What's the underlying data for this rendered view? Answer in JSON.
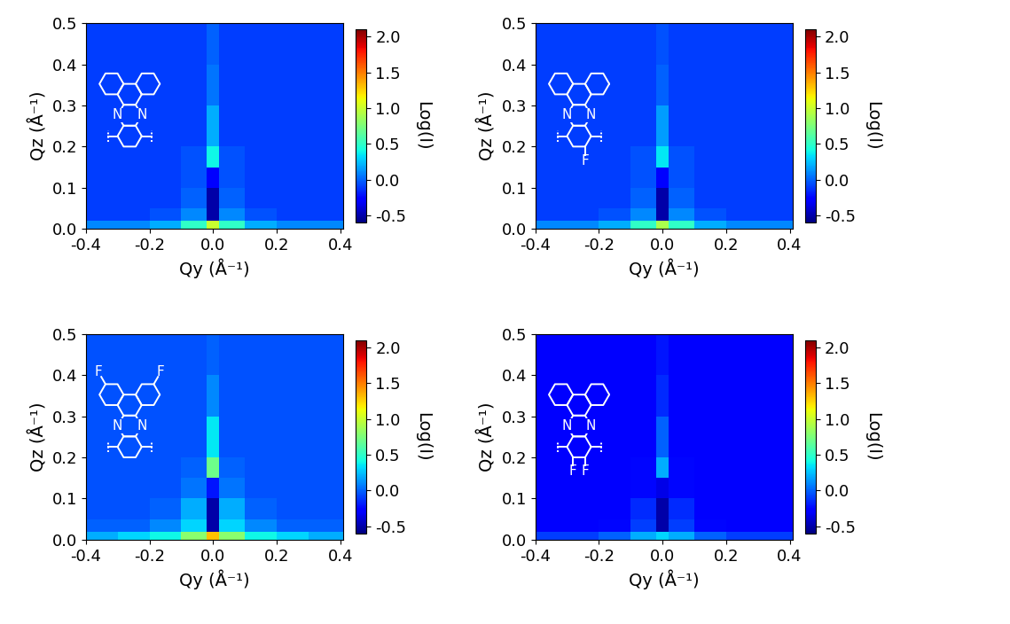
{
  "chart_data": [
    {
      "type": "heatmap",
      "x_label": "Qy (Å⁻¹)",
      "y_label": "Qz (Å⁻¹)",
      "xlim": [
        -0.4,
        0.41
      ],
      "ylim": [
        0,
        0.5
      ],
      "xticks": [
        -0.4,
        -0.2,
        {
          "value": 0.0,
          "label": "0.0"
        },
        0.2,
        0.4
      ],
      "yticks": [
        {
          "value": 0.0,
          "label": "0.0"
        },
        0.1,
        0.2,
        0.3,
        0.4,
        0.5
      ],
      "qy_edges": [
        -0.4,
        -0.3,
        -0.2,
        -0.1,
        -0.02,
        0.02,
        0.1,
        0.2,
        0.3,
        0.41
      ],
      "qz_edges": [
        0,
        0.02,
        0.05,
        0.1,
        0.15,
        0.2,
        0.3,
        0.4,
        0.5
      ],
      "cells": [
        [
          0.1,
          0.1,
          0.2,
          0.5,
          1.0,
          0.5,
          0.2,
          0.1,
          0.1
        ],
        [
          -0.1,
          -0.1,
          -0.05,
          0.1,
          -0.5,
          0.1,
          -0.05,
          -0.1,
          -0.1
        ],
        [
          -0.1,
          -0.1,
          -0.1,
          0.0,
          -0.5,
          0.0,
          -0.1,
          -0.1,
          -0.1
        ],
        [
          -0.1,
          -0.1,
          -0.1,
          -0.05,
          -0.3,
          -0.05,
          -0.1,
          -0.1,
          -0.1
        ],
        [
          -0.1,
          -0.1,
          -0.1,
          -0.05,
          0.4,
          -0.05,
          -0.1,
          -0.1,
          -0.1
        ],
        [
          -0.1,
          -0.1,
          -0.1,
          -0.1,
          0.2,
          -0.1,
          -0.1,
          -0.1,
          -0.1
        ],
        [
          -0.1,
          -0.1,
          -0.1,
          -0.1,
          0.05,
          -0.1,
          -0.1,
          -0.1,
          -0.1
        ],
        [
          -0.1,
          -0.1,
          -0.1,
          -0.1,
          0.0,
          -0.1,
          -0.1,
          -0.1,
          -0.1
        ]
      ],
      "colorbar": {
        "label": "Log(I)",
        "range": [
          -0.6,
          2.1
        ],
        "ticks": [
          -0.5,
          {
            "value": 0.0,
            "label": "0.0"
          },
          0.5,
          {
            "value": 1.0,
            "label": "1.0"
          },
          1.5,
          {
            "value": 2.0,
            "label": "2.0"
          }
        ]
      },
      "structure_labels": [
        "N",
        "N"
      ]
    },
    {
      "type": "heatmap",
      "x_label": "Qy (Å⁻¹)",
      "y_label": "Qz (Å⁻¹)",
      "xlim": [
        -0.4,
        0.41
      ],
      "ylim": [
        0,
        0.5
      ],
      "xticks": [
        -0.4,
        -0.2,
        {
          "value": 0.0,
          "label": "0.0"
        },
        0.2,
        0.4
      ],
      "yticks": [
        {
          "value": 0.0,
          "label": "0.0"
        },
        0.1,
        0.2,
        0.3,
        0.4,
        0.5
      ],
      "qy_edges": [
        -0.4,
        -0.3,
        -0.2,
        -0.1,
        -0.02,
        0.02,
        0.1,
        0.2,
        0.3,
        0.41
      ],
      "qz_edges": [
        0,
        0.02,
        0.05,
        0.1,
        0.15,
        0.2,
        0.3,
        0.4,
        0.5
      ],
      "cells": [
        [
          0.1,
          0.1,
          0.2,
          0.5,
          0.9,
          0.5,
          0.2,
          0.1,
          0.1
        ],
        [
          -0.1,
          -0.1,
          -0.05,
          0.1,
          -0.5,
          0.1,
          -0.05,
          -0.1,
          -0.1
        ],
        [
          -0.1,
          -0.1,
          -0.1,
          0.0,
          -0.5,
          0.0,
          -0.1,
          -0.1,
          -0.1
        ],
        [
          -0.1,
          -0.1,
          -0.1,
          -0.05,
          -0.3,
          -0.05,
          -0.1,
          -0.1,
          -0.1
        ],
        [
          -0.1,
          -0.1,
          -0.1,
          -0.05,
          0.35,
          -0.05,
          -0.1,
          -0.1,
          -0.1
        ],
        [
          -0.1,
          -0.1,
          -0.1,
          -0.1,
          0.15,
          -0.1,
          -0.1,
          -0.1,
          -0.1
        ],
        [
          -0.1,
          -0.1,
          -0.1,
          -0.1,
          0.0,
          -0.1,
          -0.1,
          -0.1,
          -0.1
        ],
        [
          -0.1,
          -0.1,
          -0.1,
          -0.1,
          -0.05,
          -0.1,
          -0.1,
          -0.1,
          -0.1
        ]
      ],
      "colorbar": {
        "label": "Log(I)",
        "range": [
          -0.6,
          2.1
        ],
        "ticks": [
          -0.5,
          {
            "value": 0.0,
            "label": "0.0"
          },
          0.5,
          {
            "value": 1.0,
            "label": "1.0"
          },
          1.5,
          {
            "value": 2.0,
            "label": "2.0"
          }
        ]
      },
      "structure_labels": [
        "N",
        "N",
        "F"
      ]
    },
    {
      "type": "heatmap",
      "x_label": "Qy (Å⁻¹)",
      "y_label": "Qz (Å⁻¹)",
      "xlim": [
        -0.4,
        0.41
      ],
      "ylim": [
        0,
        0.5
      ],
      "xticks": [
        -0.4,
        -0.2,
        {
          "value": 0.0,
          "label": "0.0"
        },
        0.2,
        0.4
      ],
      "yticks": [
        {
          "value": 0.0,
          "label": "0.0"
        },
        0.1,
        0.2,
        0.3,
        0.4,
        0.5
      ],
      "qy_edges": [
        -0.4,
        -0.3,
        -0.2,
        -0.1,
        -0.02,
        0.02,
        0.1,
        0.2,
        0.3,
        0.41
      ],
      "qz_edges": [
        0,
        0.02,
        0.05,
        0.1,
        0.15,
        0.2,
        0.3,
        0.4,
        0.5
      ],
      "cells": [
        [
          0.2,
          0.3,
          0.4,
          0.8,
          1.3,
          0.8,
          0.4,
          0.3,
          0.2
        ],
        [
          0.0,
          0.0,
          0.1,
          0.3,
          -0.5,
          0.3,
          0.1,
          0.0,
          0.0
        ],
        [
          -0.05,
          -0.05,
          0.0,
          0.2,
          -0.5,
          0.2,
          0.0,
          -0.05,
          -0.05
        ],
        [
          -0.05,
          -0.05,
          -0.05,
          0.05,
          -0.2,
          0.05,
          -0.05,
          -0.05,
          -0.05
        ],
        [
          -0.05,
          -0.05,
          -0.05,
          0.0,
          0.7,
          0.0,
          -0.05,
          -0.05,
          -0.05
        ],
        [
          -0.05,
          -0.05,
          -0.05,
          -0.05,
          0.35,
          -0.05,
          -0.05,
          -0.05,
          -0.05
        ],
        [
          -0.05,
          -0.05,
          -0.05,
          -0.05,
          0.1,
          -0.05,
          -0.05,
          -0.05,
          -0.05
        ],
        [
          -0.05,
          -0.05,
          -0.05,
          -0.05,
          0.0,
          -0.05,
          -0.05,
          -0.05,
          -0.05
        ]
      ],
      "colorbar": {
        "label": "Log(I)",
        "range": [
          -0.6,
          2.1
        ],
        "ticks": [
          -0.5,
          {
            "value": 0.0,
            "label": "0.0"
          },
          0.5,
          {
            "value": 1.0,
            "label": "1.0"
          },
          1.5,
          {
            "value": 2.0,
            "label": "2.0"
          }
        ]
      },
      "structure_labels": [
        "N",
        "N",
        "F",
        "F"
      ]
    },
    {
      "type": "heatmap",
      "x_label": "Qy (Å⁻¹)",
      "y_label": "Qz (Å⁻¹)",
      "xlim": [
        -0.4,
        0.41
      ],
      "ylim": [
        0,
        0.5
      ],
      "xticks": [
        -0.4,
        -0.2,
        {
          "value": 0.0,
          "label": "0.0"
        },
        0.2,
        0.4
      ],
      "yticks": [
        {
          "value": 0.0,
          "label": "0.0"
        },
        0.1,
        0.2,
        0.3,
        0.4,
        0.5
      ],
      "qy_edges": [
        -0.4,
        -0.3,
        -0.2,
        -0.1,
        -0.02,
        0.02,
        0.1,
        0.2,
        0.3,
        0.41
      ],
      "qz_edges": [
        0,
        0.02,
        0.05,
        0.1,
        0.15,
        0.2,
        0.3,
        0.4,
        0.5
      ],
      "cells": [
        [
          -0.1,
          -0.1,
          0.0,
          0.2,
          0.3,
          0.2,
          0.0,
          -0.1,
          -0.1
        ],
        [
          -0.3,
          -0.3,
          -0.25,
          -0.1,
          -0.5,
          -0.1,
          -0.25,
          -0.3,
          -0.3
        ],
        [
          -0.3,
          -0.3,
          -0.3,
          -0.15,
          -0.5,
          -0.15,
          -0.3,
          -0.3,
          -0.3
        ],
        [
          -0.3,
          -0.3,
          -0.3,
          -0.25,
          -0.35,
          -0.25,
          -0.3,
          -0.3,
          -0.3
        ],
        [
          -0.3,
          -0.3,
          -0.3,
          -0.25,
          0.2,
          -0.25,
          -0.3,
          -0.3,
          -0.3
        ],
        [
          -0.3,
          -0.3,
          -0.3,
          -0.3,
          0.0,
          -0.3,
          -0.3,
          -0.3,
          -0.3
        ],
        [
          -0.3,
          -0.3,
          -0.3,
          -0.3,
          -0.15,
          -0.3,
          -0.3,
          -0.3,
          -0.3
        ],
        [
          -0.3,
          -0.3,
          -0.3,
          -0.3,
          -0.2,
          -0.3,
          -0.3,
          -0.3,
          -0.3
        ]
      ],
      "colorbar": {
        "label": "Log(I)",
        "range": [
          -0.6,
          2.1
        ],
        "ticks": [
          -0.5,
          {
            "value": 0.0,
            "label": "0.0"
          },
          0.5,
          {
            "value": 1.0,
            "label": "1.0"
          },
          1.5,
          {
            "value": 2.0,
            "label": "2.0"
          }
        ]
      },
      "structure_labels": [
        "N",
        "N",
        "F",
        "F"
      ]
    }
  ]
}
